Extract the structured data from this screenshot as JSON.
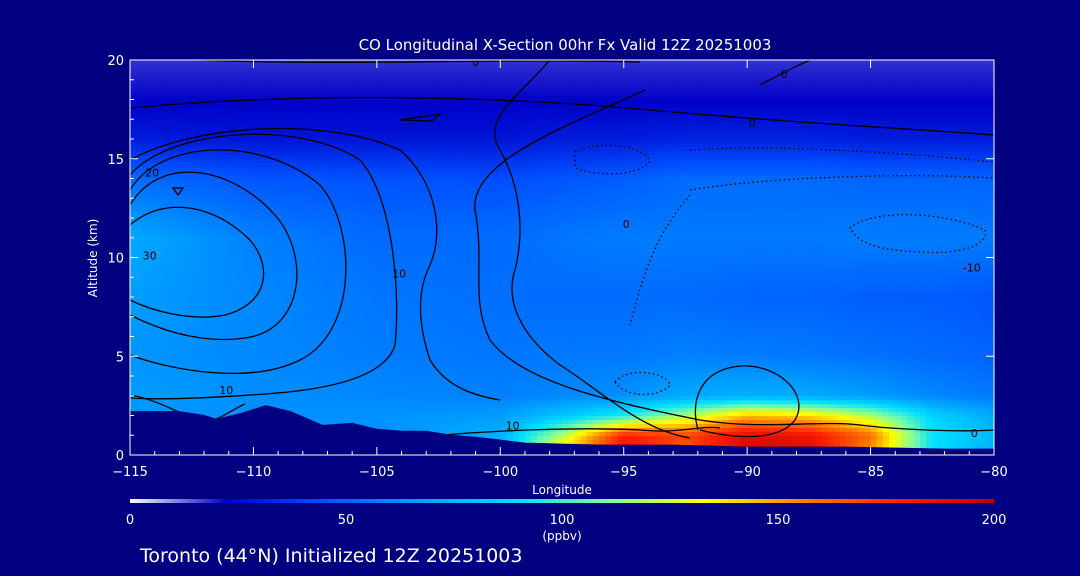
{
  "chart_data": {
    "type": "heatmap",
    "title": "CO Longitudinal X-Section 00hr  Fx Valid 12Z 20251003",
    "xlabel": "Longitude",
    "ylabel": "Altitude (km)",
    "xlim": [
      -115,
      -80
    ],
    "ylim": [
      0,
      20
    ],
    "x_ticks": [
      "−115",
      "−110",
      "−105",
      "−100",
      "−95",
      "−90",
      "−85",
      "−80"
    ],
    "x_tick_values": [
      -115,
      -110,
      -105,
      -100,
      -95,
      -90,
      -85,
      -80
    ],
    "y_ticks": [
      "0",
      "5",
      "10",
      "15",
      "20"
    ],
    "y_tick_values": [
      0,
      5,
      10,
      15,
      20
    ],
    "colorbar": {
      "label": "(ppbv)",
      "range": [
        0,
        200
      ],
      "ticks": [
        "0",
        "50",
        "100",
        "150",
        "200"
      ],
      "tick_values": [
        0,
        50,
        100,
        150,
        200
      ],
      "colors": [
        "#ffffff",
        "#0000c8",
        "#0050ff",
        "#00a0ff",
        "#00e0ff",
        "#80ffa0",
        "#ffff00",
        "#ff8000",
        "#ff2000",
        "#c00000"
      ]
    },
    "contour_labels": [
      {
        "text": "0",
        "lon": -101,
        "alt": 19.7
      },
      {
        "text": "0",
        "lon": -88.5,
        "alt": 19.1
      },
      {
        "text": "0",
        "lon": -89.8,
        "alt": 16.6
      },
      {
        "text": "0",
        "lon": -94.9,
        "alt": 11.5
      },
      {
        "text": "0",
        "lon": -80.8,
        "alt": 0.9
      },
      {
        "text": "10",
        "lon": -104.1,
        "alt": 9.0
      },
      {
        "text": "10",
        "lon": -99.5,
        "alt": 1.3
      },
      {
        "text": "10",
        "lon": -111.1,
        "alt": 3.1
      },
      {
        "text": "20",
        "lon": -114.1,
        "alt": 14.1
      },
      {
        "text": "30",
        "lon": -114.2,
        "alt": 9.9
      },
      {
        "text": "-10",
        "lon": -80.9,
        "alt": 9.3
      }
    ],
    "co_field": {
      "lons": [
        -115,
        -110,
        -105,
        -100,
        -97.5,
        -95,
        -92.5,
        -90,
        -87.5,
        -85,
        -82.5,
        -80
      ],
      "alts": [
        0,
        1,
        2,
        3,
        5,
        8,
        11,
        14,
        16,
        18,
        20
      ],
      "values": [
        [
          60,
          60,
          60,
          70,
          150,
          185,
          160,
          195,
          190,
          150,
          90,
          70
        ],
        [
          60,
          60,
          62,
          72,
          120,
          180,
          170,
          190,
          185,
          160,
          90,
          75
        ],
        [
          64,
          62,
          63,
          66,
          80,
          95,
          120,
          145,
          140,
          120,
          85,
          70
        ],
        [
          66,
          62,
          60,
          58,
          60,
          62,
          70,
          72,
          70,
          66,
          60,
          56
        ],
        [
          64,
          60,
          57,
          55,
          56,
          56,
          58,
          57,
          56,
          54,
          52,
          50
        ],
        [
          66,
          60,
          55,
          53,
          52,
          52,
          52,
          50,
          50,
          48,
          48,
          46
        ],
        [
          70,
          58,
          52,
          52,
          55,
          57,
          56,
          56,
          56,
          57,
          57,
          56
        ],
        [
          52,
          46,
          45,
          44,
          46,
          48,
          52,
          52,
          52,
          50,
          50,
          50
        ],
        [
          30,
          28,
          28,
          28,
          30,
          30,
          32,
          32,
          32,
          30,
          30,
          30
        ],
        [
          22,
          22,
          22,
          22,
          22,
          22,
          22,
          22,
          22,
          22,
          22,
          22
        ],
        [
          18,
          18,
          18,
          18,
          18,
          18,
          18,
          18,
          18,
          18,
          18,
          18
        ]
      ]
    },
    "terrain": {
      "lons": [
        -115,
        -113,
        -112,
        -111.5,
        -110.5,
        -109.5,
        -108.5,
        -107.2,
        -106,
        -105,
        -104,
        -103,
        -102,
        -101,
        -99,
        -96,
        -93,
        -90,
        -86,
        -82,
        -80
      ],
      "alts": [
        2.2,
        2.2,
        2.0,
        1.8,
        2.1,
        2.5,
        2.2,
        1.5,
        1.6,
        1.3,
        1.2,
        1.2,
        1.0,
        0.9,
        0.6,
        0.5,
        0.5,
        0.4,
        0.4,
        0.3,
        0.3
      ]
    }
  },
  "footer": {
    "text": "Toronto (44°N) Initialized 12Z 20251003"
  }
}
